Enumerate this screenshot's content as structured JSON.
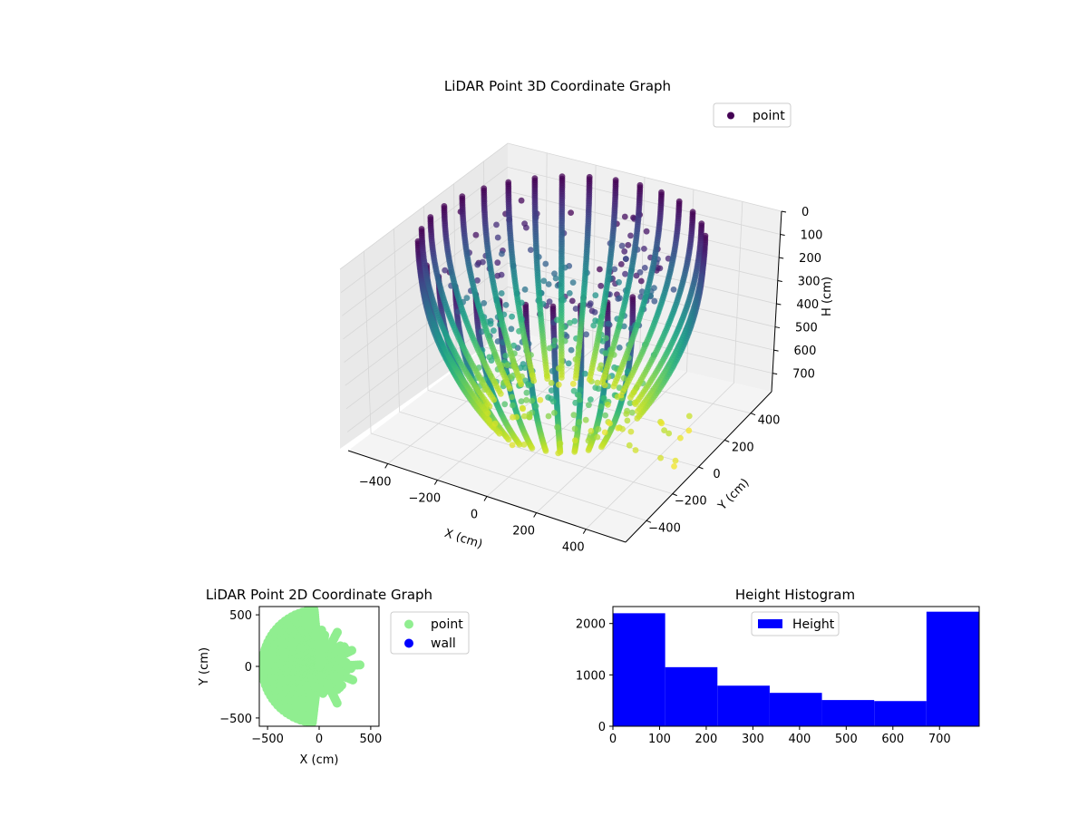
{
  "chart_data": [
    {
      "type": "scatter",
      "projection": "3d",
      "title": "LiDAR Point 3D Coordinate Graph",
      "xlabel": "X (cm)",
      "ylabel": "Y (cm)",
      "zlabel": "H (cm)",
      "xlim": [
        -560,
        560
      ],
      "ylim": [
        -560,
        560
      ],
      "zlim": [
        0,
        780
      ],
      "z_inverted": true,
      "x_ticks": [
        -400,
        -200,
        0,
        200,
        400
      ],
      "x_tick_labels": [
        "−400",
        "−200",
        "0",
        "200",
        "400"
      ],
      "y_ticks": [
        -400,
        -200,
        0,
        200,
        400
      ],
      "y_tick_labels": [
        "−400",
        "−200",
        "0",
        "200",
        "400"
      ],
      "z_ticks": [
        0,
        100,
        200,
        300,
        400,
        500,
        600,
        700
      ],
      "z_tick_labels": [
        "0",
        "100",
        "200",
        "300",
        "400",
        "500",
        "600",
        "700"
      ],
      "colormap": "viridis",
      "legend": {
        "position": "upper-right",
        "entries": [
          {
            "label": "point",
            "color": "#440154"
          }
        ]
      },
      "series": [
        {
          "name": "point",
          "shape": "cylinder-scan",
          "radius_cm": 500,
          "h_range": [
            0,
            780
          ],
          "open_sector": "+x"
        }
      ],
      "grid": true
    },
    {
      "type": "scatter",
      "title": "LiDAR Point 2D Coordinate Graph",
      "xlabel": "X (cm)",
      "ylabel": "Y (cm)",
      "xlim": [
        -580,
        580
      ],
      "ylim": [
        -580,
        580
      ],
      "x_ticks": [
        -500,
        0,
        500
      ],
      "x_tick_labels": [
        "−500",
        "0",
        "500"
      ],
      "y_ticks": [
        -500,
        0,
        500
      ],
      "y_tick_labels": [
        "−500",
        "0",
        "500"
      ],
      "legend": {
        "position": "outside-right",
        "entries": [
          {
            "label": "point",
            "color": "#90ee90"
          },
          {
            "label": "wall",
            "color": "#0000ff"
          }
        ]
      },
      "series": [
        {
          "name": "point",
          "color": "#90ee90"
        }
      ]
    },
    {
      "type": "bar",
      "subtype": "histogram",
      "title": "Height Histogram",
      "xlim": [
        0,
        785
      ],
      "ylim": [
        0,
        2330
      ],
      "x_ticks": [
        0,
        100,
        200,
        300,
        400,
        500,
        600,
        700
      ],
      "x_tick_labels": [
        "0",
        "100",
        "200",
        "300",
        "400",
        "500",
        "600",
        "700"
      ],
      "y_ticks": [
        0,
        1000,
        2000
      ],
      "y_tick_labels": [
        "0",
        "1000",
        "2000"
      ],
      "bin_edges": [
        0,
        112,
        224,
        336,
        448,
        560,
        672,
        784
      ],
      "values": [
        2200,
        1150,
        790,
        650,
        510,
        490,
        2230
      ],
      "color": "#0000ff",
      "legend": {
        "position": "upper-center",
        "entries": [
          {
            "label": "Height",
            "color": "#0000ff"
          }
        ]
      }
    }
  ]
}
